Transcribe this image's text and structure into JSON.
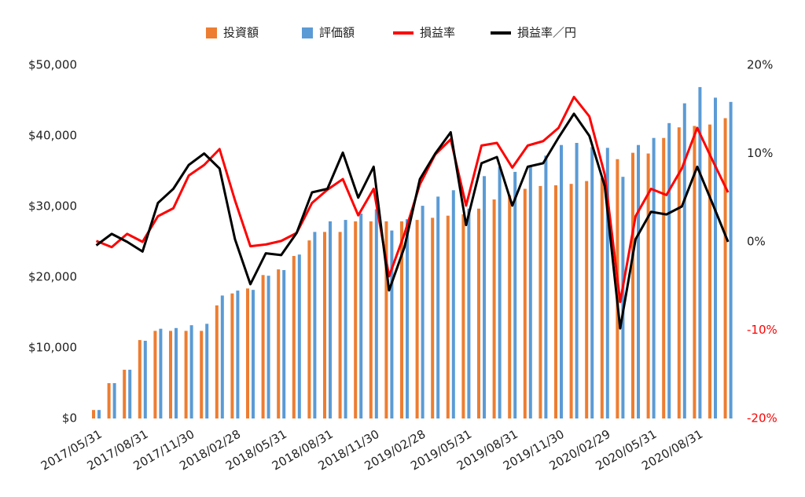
{
  "chart_data": {
    "type": "bar-line",
    "categories": [
      "2017/05/31",
      null,
      null,
      "2017/08/31",
      null,
      null,
      "2017/11/30",
      null,
      null,
      "2018/02/28",
      null,
      null,
      "2018/05/31",
      null,
      null,
      "2018/08/31",
      null,
      null,
      "2018/11/30",
      null,
      null,
      "2019/02/28",
      null,
      null,
      "2019/05/31",
      null,
      null,
      "2019/08/31",
      null,
      null,
      "2019/11/30",
      null,
      null,
      "2020/02/29",
      null,
      null,
      "2020/05/31",
      null,
      null,
      "2020/08/31",
      null,
      null
    ],
    "series": [
      {
        "name": "投資額",
        "type": "bar",
        "color": "#ed7d31",
        "values": [
          1200,
          5000,
          6900,
          11100,
          12400,
          12400,
          12400,
          12400,
          16000,
          17700,
          18400,
          20300,
          21100,
          23000,
          25200,
          26400,
          26400,
          27900,
          27900,
          27900,
          27900,
          28100,
          28400,
          28700,
          28900,
          29700,
          31000,
          31600,
          32500,
          32900,
          33000,
          33200,
          33600,
          34000,
          36700,
          37600,
          37500,
          39700,
          41200,
          41400,
          41600,
          42500
        ]
      },
      {
        "name": "評価額",
        "type": "bar",
        "color": "#5b9bd5",
        "values": [
          1200,
          5000,
          6900,
          11000,
          12700,
          12800,
          13200,
          13400,
          17400,
          18100,
          18200,
          20200,
          21000,
          23200,
          26400,
          27900,
          28100,
          29000,
          29600,
          26600,
          28200,
          30100,
          31400,
          32300,
          29700,
          34300,
          35600,
          34900,
          35800,
          37200,
          38700,
          39000,
          38400,
          38300,
          34200,
          38700,
          39700,
          41800,
          44600,
          46900,
          45400,
          44800
        ]
      },
      {
        "name": "損益率",
        "type": "line",
        "axis": "y2",
        "color": "#ff0000",
        "values": [
          0.1,
          -0.6,
          0.9,
          0,
          2.9,
          3.8,
          7.5,
          8.7,
          10.5,
          4.7,
          -0.5,
          -0.3,
          0.1,
          1.0,
          4.4,
          5.9,
          7.1,
          3.0,
          6.0,
          -3.9,
          0.9,
          6.5,
          9.9,
          11.6,
          4.1,
          10.9,
          11.2,
          8.4,
          10.9,
          11.4,
          12.9,
          16.4,
          14.2,
          7.6,
          -6.8,
          2.9,
          6.0,
          5.3,
          8.3,
          12.9,
          9.2,
          5.6
        ]
      },
      {
        "name": "損益率／円",
        "type": "line",
        "axis": "y2",
        "color": "#000000",
        "values": [
          -0.4,
          0.9,
          0,
          -1.1,
          4.4,
          6.0,
          8.7,
          10.0,
          8.3,
          0.3,
          -4.8,
          -1.3,
          -1.5,
          1.0,
          5.6,
          6.0,
          10.1,
          5.0,
          8.5,
          -5.5,
          -0.6,
          7.1,
          10.0,
          12.4,
          1.9,
          8.9,
          9.6,
          4.1,
          8.5,
          8.9,
          11.8,
          14.5,
          12.0,
          6.3,
          -9.8,
          0.3,
          3.4,
          3.1,
          4.0,
          8.5,
          4.3,
          0
        ]
      }
    ],
    "ylim": [
      0,
      50000
    ],
    "yticks": [
      {
        "value": 0,
        "label": "$0"
      },
      {
        "value": 10000,
        "label": "$10,000"
      },
      {
        "value": 20000,
        "label": "$20,000"
      },
      {
        "value": 30000,
        "label": "$30,000"
      },
      {
        "value": 40000,
        "label": "$40,000"
      },
      {
        "value": 50000,
        "label": "$50,000"
      }
    ],
    "y2lim": [
      -20,
      20
    ],
    "y2ticks": [
      {
        "value": -20,
        "label": "-20%"
      },
      {
        "value": -10,
        "label": "-10%"
      },
      {
        "value": 0,
        "label": "0%"
      },
      {
        "value": 10,
        "label": "10%"
      },
      {
        "value": 20,
        "label": "20%"
      }
    ],
    "y2_negative_color": "#ff0000",
    "legend": "top"
  }
}
